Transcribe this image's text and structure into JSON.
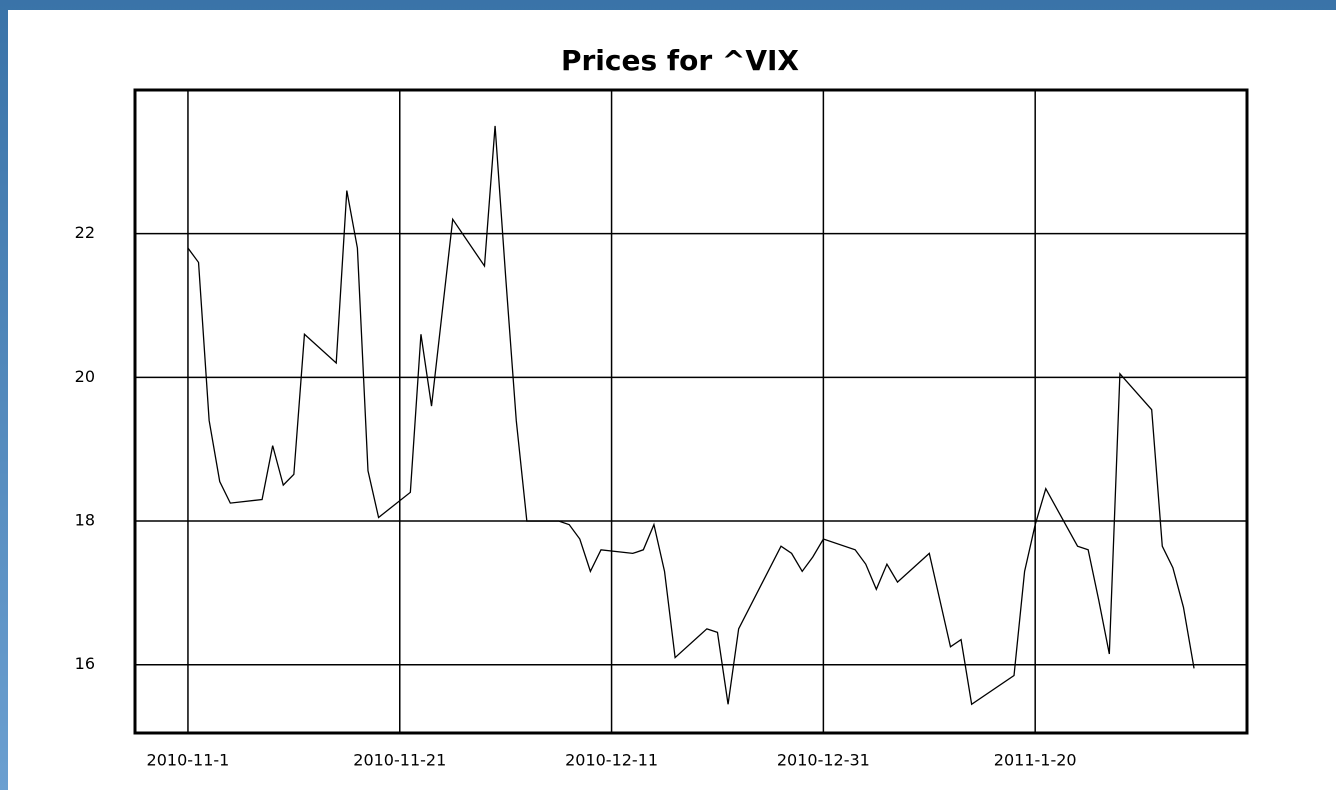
{
  "chart_data": {
    "type": "line",
    "title": "Prices for ^VIX",
    "x": [
      "2010-11-01",
      "2010-11-02",
      "2010-11-03",
      "2010-11-04",
      "2010-11-05",
      "2010-11-08",
      "2010-11-09",
      "2010-11-10",
      "2010-11-11",
      "2010-11-12",
      "2010-11-15",
      "2010-11-16",
      "2010-11-17",
      "2010-11-18",
      "2010-11-19",
      "2010-11-22",
      "2010-11-23",
      "2010-11-24",
      "2010-11-26",
      "2010-11-29",
      "2010-11-30",
      "2010-12-01",
      "2010-12-02",
      "2010-12-03",
      "2010-12-06",
      "2010-12-07",
      "2010-12-08",
      "2010-12-09",
      "2010-12-10",
      "2010-12-13",
      "2010-12-14",
      "2010-12-15",
      "2010-12-16",
      "2010-12-17",
      "2010-12-20",
      "2010-12-21",
      "2010-12-22",
      "2010-12-23",
      "2010-12-27",
      "2010-12-28",
      "2010-12-29",
      "2010-12-30",
      "2010-12-31",
      "2011-01-03",
      "2011-01-04",
      "2011-01-05",
      "2011-01-06",
      "2011-01-07",
      "2011-01-10",
      "2011-01-11",
      "2011-01-12",
      "2011-01-13",
      "2011-01-14",
      "2011-01-18",
      "2011-01-19",
      "2011-01-20",
      "2011-01-21",
      "2011-01-24",
      "2011-01-25",
      "2011-01-26",
      "2011-01-27",
      "2011-01-28",
      "2011-01-31",
      "2011-02-01",
      "2011-02-02",
      "2011-02-03",
      "2011-02-04"
    ],
    "series": [
      {
        "name": "^VIX",
        "color": "#000000",
        "values": [
          21.8,
          21.6,
          19.4,
          18.55,
          18.25,
          18.3,
          19.05,
          18.5,
          18.65,
          20.6,
          20.2,
          22.6,
          21.8,
          18.7,
          18.05,
          18.4,
          20.6,
          19.6,
          22.2,
          21.55,
          23.5,
          21.4,
          19.4,
          18.0,
          18.0,
          17.95,
          17.75,
          17.3,
          17.6,
          17.55,
          17.6,
          17.95,
          17.3,
          16.1,
          16.5,
          16.45,
          15.45,
          16.5,
          17.65,
          17.55,
          17.3,
          17.5,
          17.75,
          17.6,
          17.4,
          17.05,
          17.4,
          17.15,
          17.55,
          16.9,
          16.25,
          16.35,
          15.45,
          15.85,
          17.3,
          17.95,
          18.45,
          17.65,
          17.6,
          16.9,
          16.15,
          20.05,
          19.55,
          17.65,
          17.35,
          16.8,
          15.95
        ]
      }
    ],
    "xlim": [
      "2010-10-27",
      "2011-02-09"
    ],
    "xticks": [
      {
        "value": "2010-11-01",
        "label": "2010-11-1"
      },
      {
        "value": "2010-11-21",
        "label": "2010-11-21"
      },
      {
        "value": "2010-12-11",
        "label": "2010-12-11"
      },
      {
        "value": "2010-12-31",
        "label": "2010-12-31"
      },
      {
        "value": "2011-01-20",
        "label": "2011-1-20"
      }
    ],
    "ylim": [
      15.05,
      24.0
    ],
    "yticks": [
      16,
      18,
      20,
      22
    ],
    "grid": true
  }
}
